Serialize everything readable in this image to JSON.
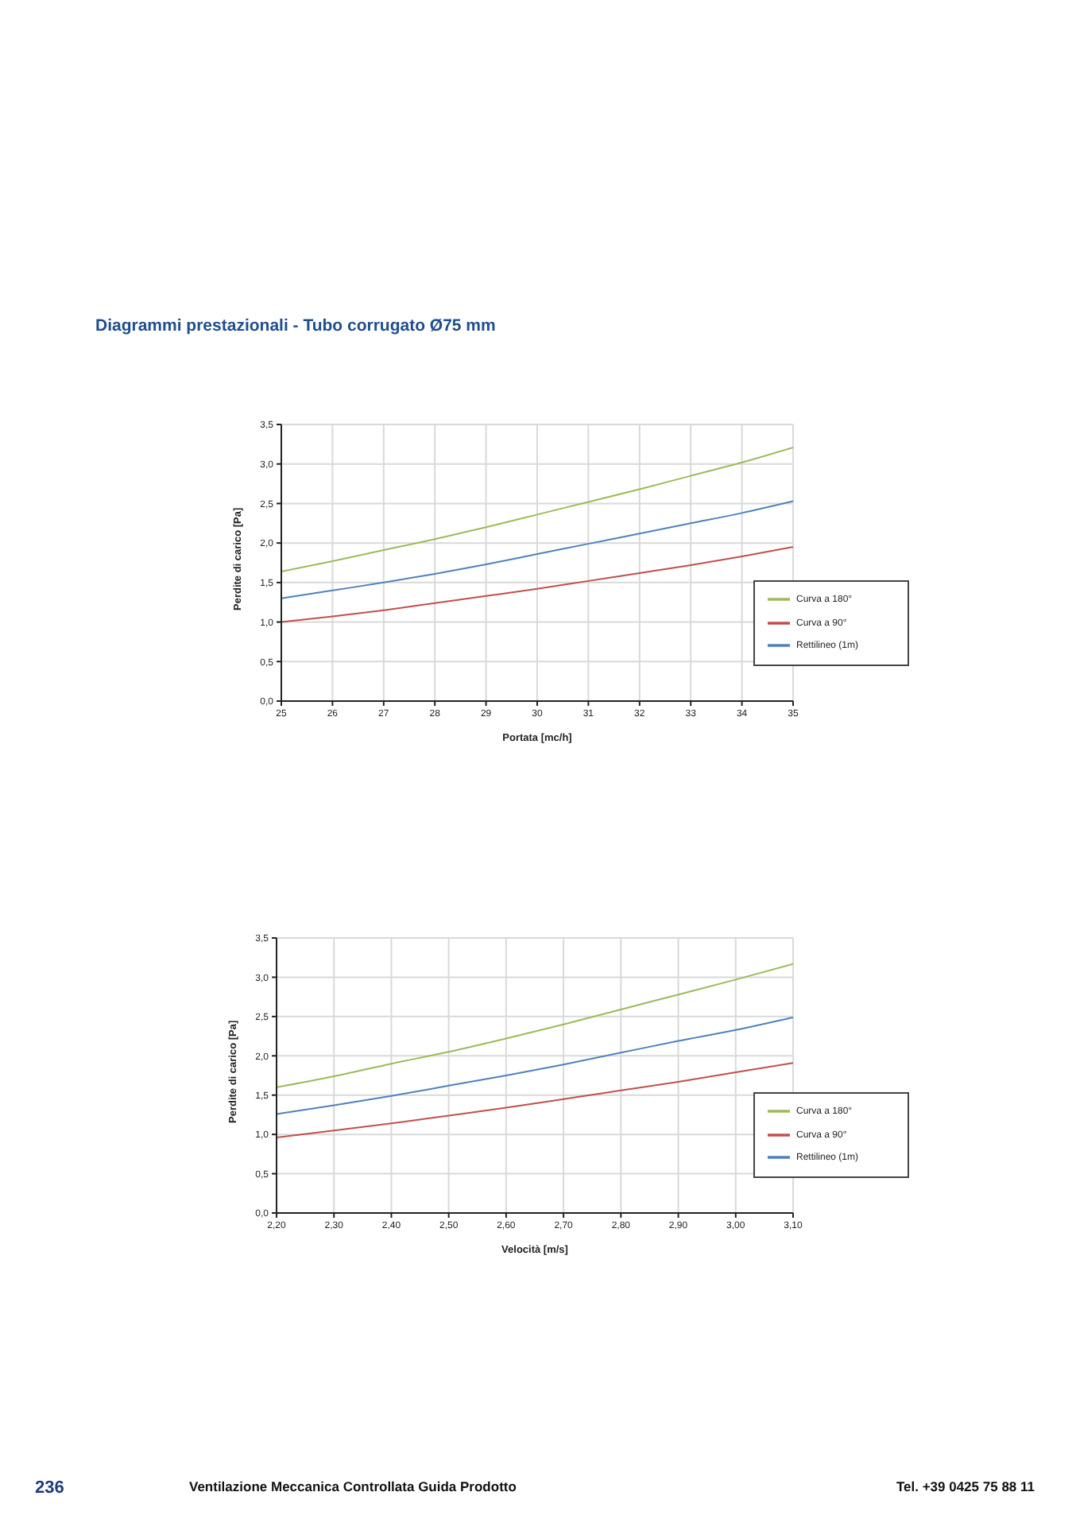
{
  "chart_data": [
    {
      "type": "line",
      "title": "Diagrammi prestazionali - Tubo corrugato Ø75 mm",
      "xlabel": "Portata [mc/h]",
      "ylabel": "Perdite di carico [Pa]",
      "x": [
        25,
        26,
        27,
        28,
        29,
        30,
        31,
        32,
        33,
        34,
        35
      ],
      "series": [
        {
          "name": "Rettilineo (1m)",
          "color": "#4f81bd",
          "values": [
            1.3,
            1.4,
            1.5,
            1.61,
            1.73,
            1.86,
            1.99,
            2.12,
            2.25,
            2.38,
            2.53
          ]
        },
        {
          "name": "Curva a 90°",
          "color": "#c0504d",
          "values": [
            1.0,
            1.07,
            1.15,
            1.24,
            1.33,
            1.42,
            1.52,
            1.62,
            1.72,
            1.83,
            1.95
          ]
        },
        {
          "name": "Curva a 180°",
          "color": "#9bbb59",
          "values": [
            1.64,
            1.77,
            1.91,
            2.05,
            2.2,
            2.36,
            2.52,
            2.68,
            2.85,
            3.02,
            3.21
          ]
        }
      ],
      "xlim": [
        25,
        35
      ],
      "xticks": [
        25,
        26,
        27,
        28,
        29,
        30,
        31,
        32,
        33,
        34,
        35
      ],
      "ylim": [
        0,
        3.5
      ],
      "yticks": [
        {
          "value": 0,
          "label": "0,0"
        },
        {
          "value": 0.5,
          "label": "0,5"
        },
        {
          "value": 1,
          "label": "1,0"
        },
        {
          "value": 1.5,
          "label": "1,5"
        },
        {
          "value": 2,
          "label": "2,0"
        },
        {
          "value": 2.5,
          "label": "2,5"
        },
        {
          "value": 3,
          "label": "3,0"
        },
        {
          "value": 3.5,
          "label": "3,5"
        }
      ],
      "grid": true,
      "legend": "bottom right",
      "marker": "none",
      "line_style": "solid"
    },
    {
      "type": "line",
      "xlabel": "Velocità [m/s]",
      "ylabel": "Perdite di carico [Pa]",
      "x": [
        2.2,
        2.3,
        2.4,
        2.5,
        2.6,
        2.7,
        2.8,
        2.9,
        3.0,
        3.1
      ],
      "series": [
        {
          "name": "Rettilineo (1m)",
          "color": "#4f81bd",
          "values": [
            1.26,
            1.37,
            1.49,
            1.62,
            1.75,
            1.89,
            2.04,
            2.19,
            2.33,
            2.49
          ]
        },
        {
          "name": "Curva a 90°",
          "color": "#c0504d",
          "values": [
            0.96,
            1.05,
            1.14,
            1.24,
            1.34,
            1.45,
            1.56,
            1.67,
            1.79,
            1.91
          ]
        },
        {
          "name": "Curva a 180°",
          "color": "#9bbb59",
          "values": [
            1.6,
            1.74,
            1.9,
            2.05,
            2.22,
            2.4,
            2.59,
            2.78,
            2.97,
            3.17
          ]
        }
      ],
      "xlim": [
        2.2,
        3.1
      ],
      "xticks": [
        {
          "value": 2.2,
          "label": "2,20"
        },
        {
          "value": 2.3,
          "label": "2,30"
        },
        {
          "value": 2.4,
          "label": "2,40"
        },
        {
          "value": 2.5,
          "label": "2,50"
        },
        {
          "value": 2.6,
          "label": "2,60"
        },
        {
          "value": 2.7,
          "label": "2,70"
        },
        {
          "value": 2.8,
          "label": "2,80"
        },
        {
          "value": 2.9,
          "label": "2,90"
        },
        {
          "value": 3.0,
          "label": "3,00"
        },
        {
          "value": 3.1,
          "label": "3,10"
        }
      ],
      "ylim": [
        0,
        3.5
      ],
      "yticks": [
        {
          "value": 0,
          "label": "0,0"
        },
        {
          "value": 0.5,
          "label": "0,5"
        },
        {
          "value": 1,
          "label": "1,0"
        },
        {
          "value": 1.5,
          "label": "1,5"
        },
        {
          "value": 2,
          "label": "2,0"
        },
        {
          "value": 2.5,
          "label": "2,5"
        },
        {
          "value": 3,
          "label": "3,0"
        },
        {
          "value": 3.5,
          "label": "3,5"
        }
      ],
      "grid": true,
      "legend": "bottom right",
      "marker": "none",
      "line_style": "solid",
      "annotations": [
        "236",
        "Ventilazione Meccanica Controllata Guida Prodotto",
        "Tel. +39 0425 75 88 11"
      ]
    }
  ]
}
